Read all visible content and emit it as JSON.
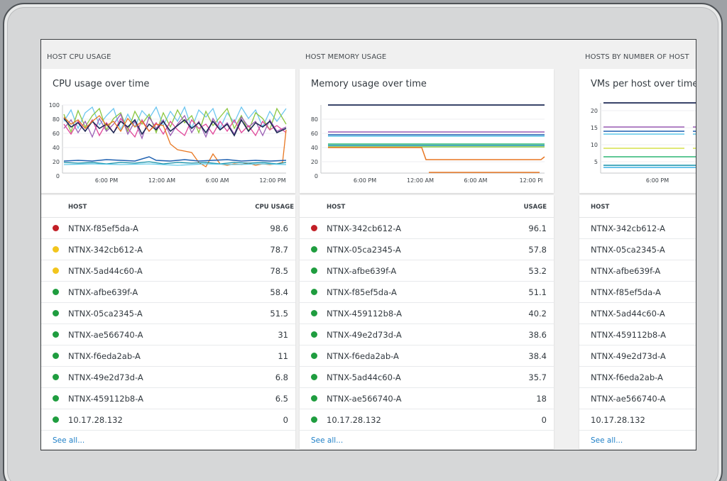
{
  "colors": {
    "red": "#c21f26",
    "yellow": "#f2c51d",
    "green": "#1f9d3f",
    "link": "#1e7fc7"
  },
  "cpu": {
    "section_label": "HOST CPU USAGE",
    "chart_title": "CPU usage over time",
    "y_ticks": [
      "100",
      "80",
      "60",
      "40",
      "20",
      "0"
    ],
    "x_ticks": [
      "6:00 PM",
      "12:00 AM",
      "6:00 AM",
      "12:00 PM"
    ],
    "col_host": "HOST",
    "col_value": "CPU USAGE",
    "rows": [
      {
        "host": "NTNX-f85ef5da-A",
        "value": "98.6",
        "status": "red"
      },
      {
        "host": "NTNX-342cb612-A",
        "value": "78.7",
        "status": "yellow"
      },
      {
        "host": "NTNX-5ad44c60-A",
        "value": "78.5",
        "status": "yellow"
      },
      {
        "host": "NTNX-afbe639f-A",
        "value": "58.4",
        "status": "green"
      },
      {
        "host": "NTNX-05ca2345-A",
        "value": "51.5",
        "status": "green"
      },
      {
        "host": "NTNX-ae566740-A",
        "value": "31",
        "status": "green"
      },
      {
        "host": "NTNX-f6eda2ab-A",
        "value": "11",
        "status": "green"
      },
      {
        "host": "NTNX-49e2d73d-A",
        "value": "6.8",
        "status": "green"
      },
      {
        "host": "NTNX-459112b8-A",
        "value": "6.5",
        "status": "green"
      },
      {
        "host": "10.17.28.132",
        "value": "0",
        "status": "green"
      }
    ],
    "see_all": "See all..."
  },
  "memory": {
    "section_label": "HOST MEMORY USAGE",
    "chart_title": "Memory usage over time",
    "y_ticks": [
      "80",
      "60",
      "40",
      "20",
      "0"
    ],
    "x_ticks": [
      "6:00 PM",
      "12:00 AM",
      "6:00 AM",
      "12:00 PI"
    ],
    "col_host": "HOST",
    "col_value": "USAGE",
    "rows": [
      {
        "host": "NTNX-342cb612-A",
        "value": "96.1",
        "status": "red"
      },
      {
        "host": "NTNX-05ca2345-A",
        "value": "57.8",
        "status": "green"
      },
      {
        "host": "NTNX-afbe639f-A",
        "value": "53.2",
        "status": "green"
      },
      {
        "host": "NTNX-f85ef5da-A",
        "value": "51.1",
        "status": "green"
      },
      {
        "host": "NTNX-459112b8-A",
        "value": "40.2",
        "status": "green"
      },
      {
        "host": "NTNX-49e2d73d-A",
        "value": "38.6",
        "status": "green"
      },
      {
        "host": "NTNX-f6eda2ab-A",
        "value": "38.4",
        "status": "green"
      },
      {
        "host": "NTNX-5ad44c60-A",
        "value": "35.7",
        "status": "green"
      },
      {
        "host": "NTNX-ae566740-A",
        "value": "18",
        "status": "green"
      },
      {
        "host": "10.17.28.132",
        "value": "0",
        "status": "green"
      }
    ],
    "see_all": "See all..."
  },
  "vms": {
    "section_label": "HOSTS BY NUMBER OF HOST",
    "chart_title": "VMs per host over time",
    "y_ticks": [
      "20",
      "15",
      "10",
      "5"
    ],
    "x_ticks": [
      "6:00 PM"
    ],
    "col_host": "HOST",
    "rows": [
      {
        "host": "NTNX-342cb612-A"
      },
      {
        "host": "NTNX-05ca2345-A"
      },
      {
        "host": "NTNX-afbe639f-A"
      },
      {
        "host": "NTNX-f85ef5da-A"
      },
      {
        "host": "NTNX-5ad44c60-A"
      },
      {
        "host": "NTNX-459112b8-A"
      },
      {
        "host": "NTNX-49e2d73d-A"
      },
      {
        "host": "NTNX-f6eda2ab-A"
      },
      {
        "host": "NTNX-ae566740-A"
      },
      {
        "host": "10.17.28.132"
      }
    ],
    "see_all": "See all..."
  }
}
